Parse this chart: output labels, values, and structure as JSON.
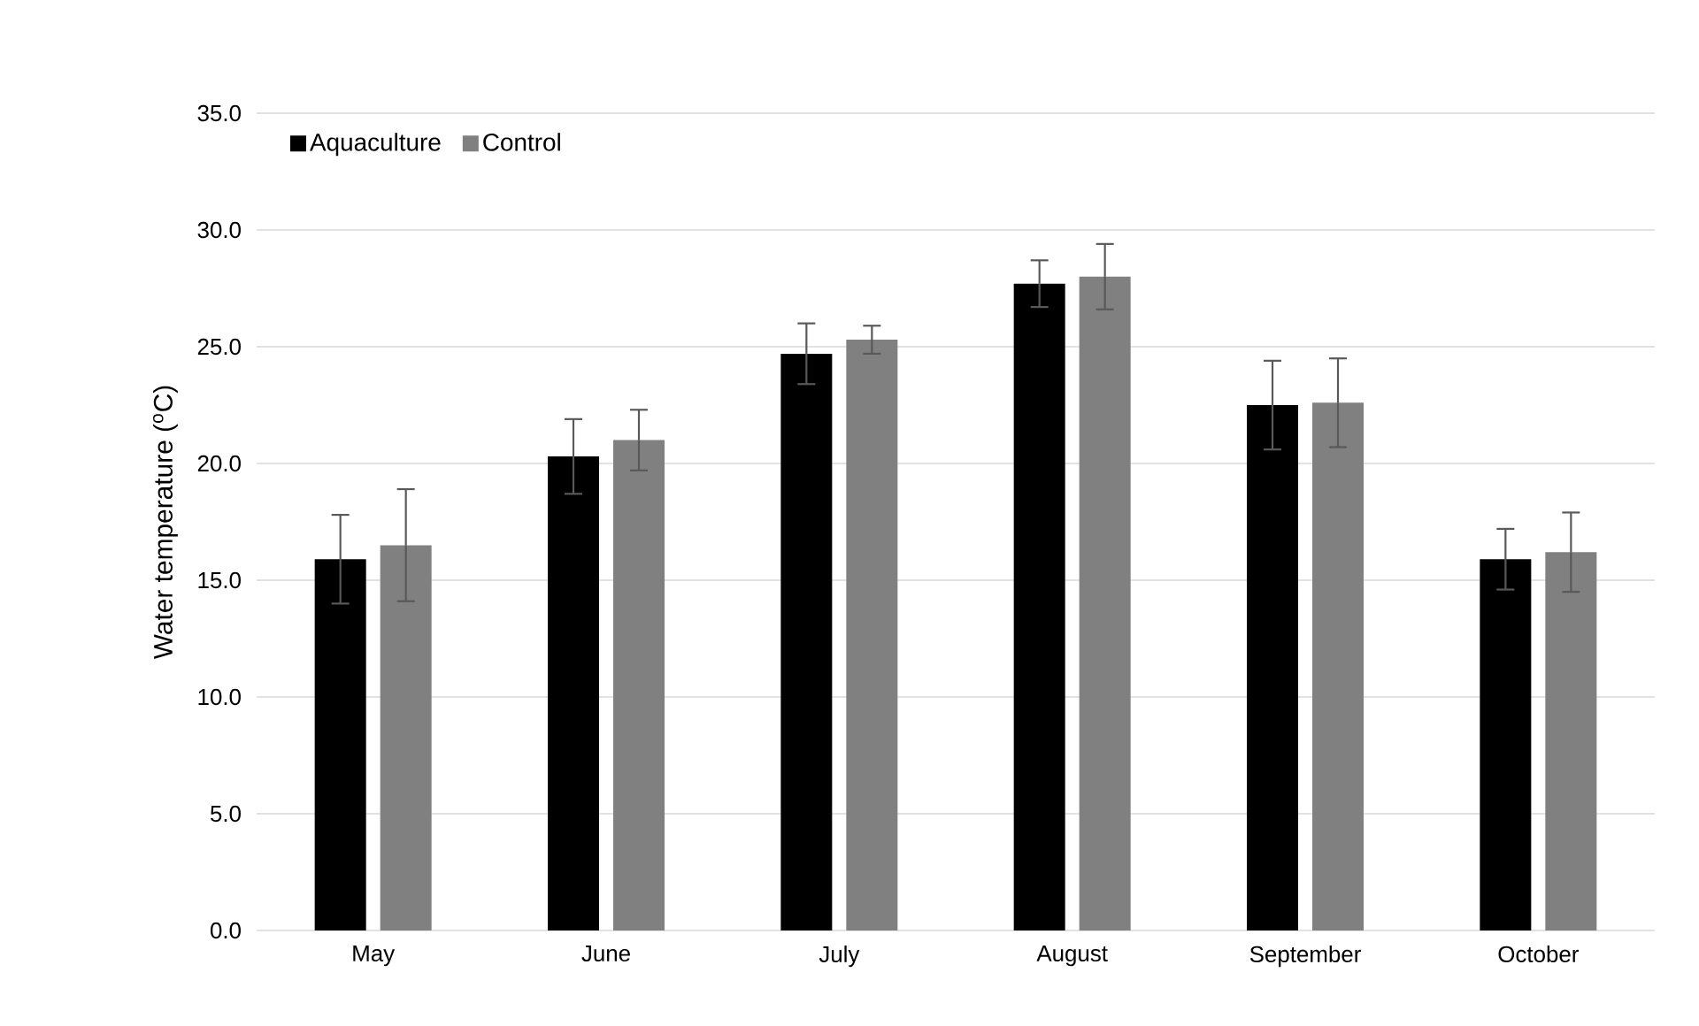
{
  "chart_data": {
    "type": "bar",
    "ylabel": "Water temperature ($^{o}$C)",
    "categories": [
      "May",
      "June",
      "July",
      "August",
      "September",
      "October"
    ],
    "series": [
      {
        "name": "Aquaculture",
        "color": "#000000",
        "values": [
          15.9,
          20.3,
          24.7,
          27.7,
          22.5,
          15.9
        ],
        "errors": [
          1.9,
          1.6,
          1.3,
          1.0,
          1.9,
          1.3
        ]
      },
      {
        "name": "Control",
        "color": "#808080",
        "values": [
          16.5,
          21.0,
          25.3,
          28.0,
          22.6,
          16.2
        ],
        "errors": [
          2.4,
          1.3,
          0.6,
          1.4,
          1.9,
          1.7
        ]
      }
    ],
    "ylim": [
      0,
      35
    ],
    "yticks": [
      {
        "value": 0,
        "label": "0.0"
      },
      {
        "value": 5,
        "label": "5.0"
      },
      {
        "value": 10,
        "label": "10.0"
      },
      {
        "value": 15,
        "label": "15.0"
      },
      {
        "value": 20,
        "label": "20.0"
      },
      {
        "value": 25,
        "label": "25.0"
      },
      {
        "value": 30,
        "label": "30.0"
      },
      {
        "value": 35,
        "label": "35.0"
      }
    ],
    "grid": "y",
    "legend": "top left"
  }
}
